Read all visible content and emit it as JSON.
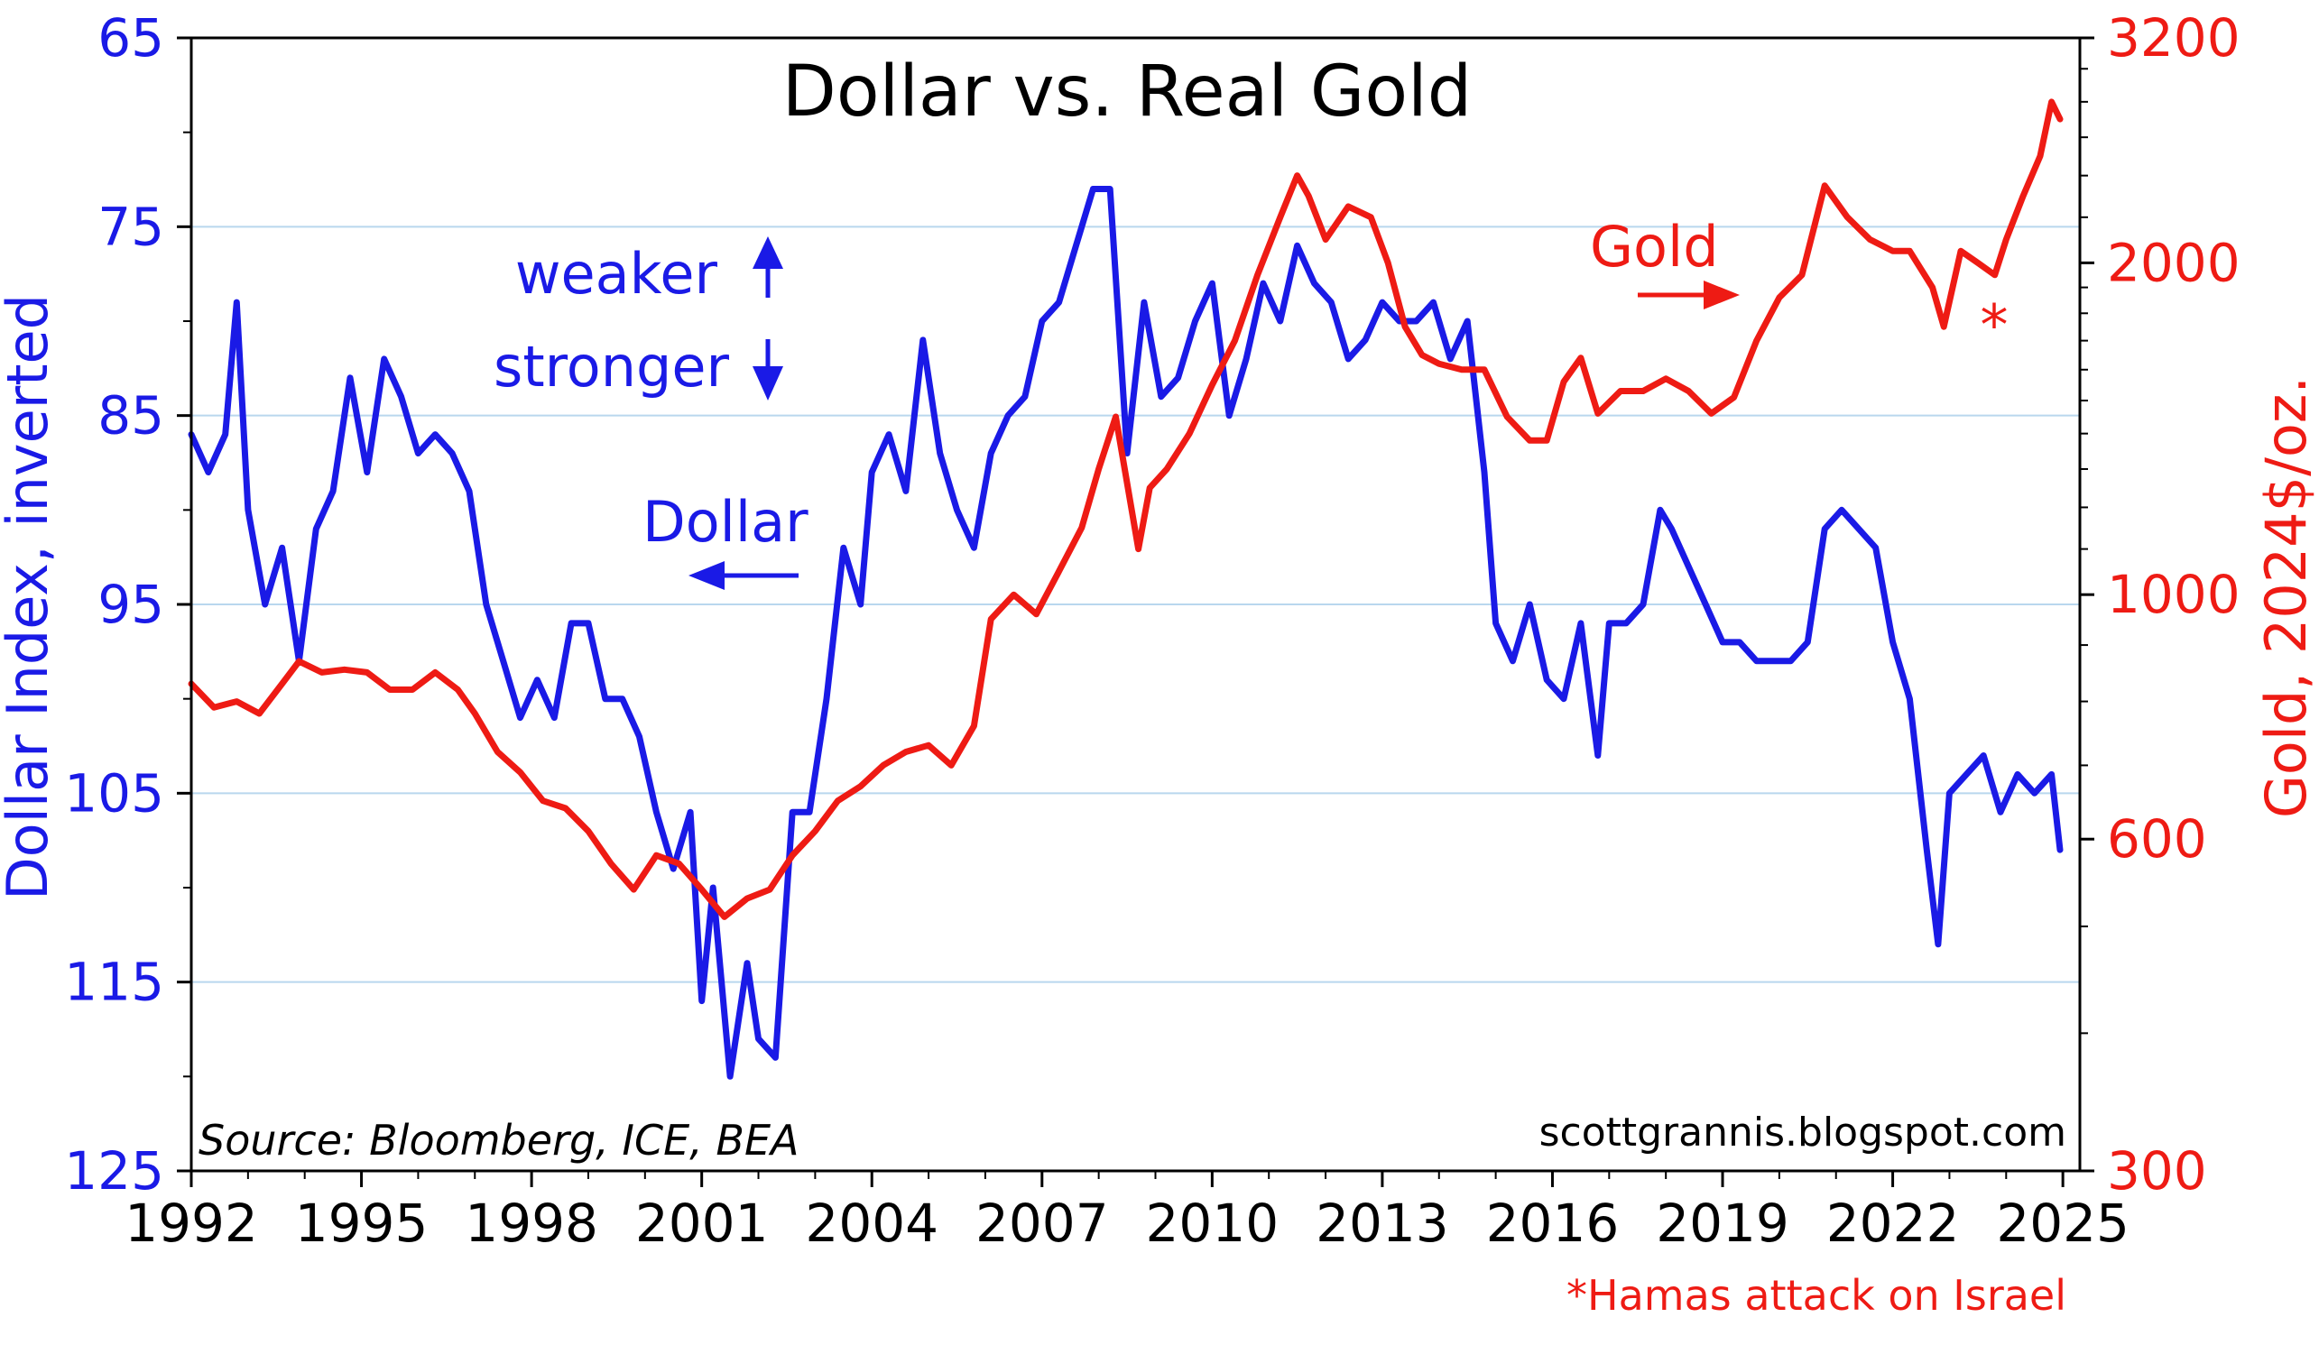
{
  "chart_data": {
    "type": "line",
    "title": "Dollar vs. Real Gold",
    "source": "Source: Bloomberg, ICE, BEA",
    "website": "scottgrannis.blogspot.com",
    "footnote": "*Hamas attack on Israel",
    "x_ticks": [
      "1992",
      "1995",
      "1998",
      "2001",
      "2004",
      "2007",
      "2010",
      "2013",
      "2016",
      "2019",
      "2022",
      "2025"
    ],
    "xlim": [
      1992,
      2025.3
    ],
    "left_axis": {
      "label": "Dollar Index, inverted",
      "ticks": [
        "65",
        "75",
        "85",
        "95",
        "105",
        "115",
        "125"
      ],
      "lim": [
        65,
        125
      ],
      "inverted": true
    },
    "right_axis": {
      "label": "Gold, 2024$/oz.",
      "ticks": [
        "3200",
        "2000",
        "1000",
        "600",
        "300"
      ],
      "lim": [
        300,
        3200
      ],
      "scale": "log"
    },
    "grid": true,
    "annotations": {
      "weaker": "weaker",
      "stronger": "stronger",
      "dollar": "Dollar",
      "gold": "Gold",
      "asterisk": "*"
    },
    "colors": {
      "dollar": "#1a1ae6",
      "gold": "#ee1b14"
    },
    "series": [
      {
        "name": "Dollar",
        "axis": "left",
        "x": [
          1992.0,
          1992.3,
          1992.6,
          1992.8,
          1993.0,
          1993.3,
          1993.6,
          1993.9,
          1994.2,
          1994.5,
          1994.8,
          1995.1,
          1995.4,
          1995.7,
          1996.0,
          1996.3,
          1996.6,
          1996.9,
          1997.2,
          1997.5,
          1997.8,
          1998.1,
          1998.4,
          1998.7,
          1999.0,
          1999.3,
          1999.6,
          1999.9,
          2000.2,
          2000.5,
          2000.8,
          2001.0,
          2001.2,
          2001.5,
          2001.8,
          2002.0,
          2002.3,
          2002.6,
          2002.9,
          2003.2,
          2003.5,
          2003.8,
          2004.0,
          2004.3,
          2004.6,
          2004.9,
          2005.2,
          2005.5,
          2005.8,
          2006.1,
          2006.4,
          2006.7,
          2007.0,
          2007.3,
          2007.6,
          2007.9,
          2008.2,
          2008.5,
          2008.8,
          2009.1,
          2009.4,
          2009.7,
          2010.0,
          2010.3,
          2010.6,
          2010.9,
          2011.2,
          2011.5,
          2011.8,
          2012.1,
          2012.4,
          2012.7,
          2013.0,
          2013.3,
          2013.6,
          2013.9,
          2014.2,
          2014.5,
          2014.8,
          2015.0,
          2015.3,
          2015.6,
          2015.9,
          2016.2,
          2016.5,
          2016.8,
          2017.0,
          2017.3,
          2017.6,
          2017.9,
          2018.1,
          2018.4,
          2018.7,
          2019.0,
          2019.3,
          2019.6,
          2019.9,
          2020.2,
          2020.5,
          2020.8,
          2021.1,
          2021.4,
          2021.7,
          2022.0,
          2022.3,
          2022.6,
          2022.8,
          2023.0,
          2023.3,
          2023.6,
          2023.9,
          2024.2,
          2024.5,
          2024.8,
          2024.95
        ],
        "values": [
          86,
          88,
          86,
          79,
          90,
          95,
          92,
          98,
          91,
          89,
          83,
          88,
          82,
          84,
          87,
          86,
          87,
          89,
          95,
          98,
          101,
          99,
          101,
          96,
          96,
          100,
          100,
          102,
          106,
          109,
          106,
          116,
          110,
          120,
          114,
          118,
          119,
          106,
          106,
          100,
          92,
          95,
          88,
          86,
          89,
          81,
          87,
          90,
          92,
          87,
          85,
          84,
          80,
          79,
          76,
          73,
          73,
          87,
          79,
          84,
          83,
          80,
          78,
          85,
          82,
          78,
          80,
          76,
          78,
          79,
          82,
          81,
          79,
          80,
          80,
          79,
          82,
          80,
          88,
          96,
          98,
          95,
          99,
          100,
          96,
          103,
          96,
          96,
          95,
          90,
          91,
          93,
          95,
          97,
          97,
          98,
          98,
          98,
          97,
          91,
          90,
          91,
          92,
          97,
          100,
          108,
          113,
          105,
          104,
          103,
          106,
          104,
          105,
          104,
          108
        ]
      },
      {
        "name": "Gold",
        "axis": "right",
        "x": [
          1992.0,
          1992.4,
          1992.8,
          1993.2,
          1993.6,
          1993.9,
          1994.3,
          1994.7,
          1995.1,
          1995.5,
          1995.9,
          1996.3,
          1996.7,
          1997.0,
          1997.4,
          1997.8,
          1998.2,
          1998.6,
          1999.0,
          1999.4,
          1999.8,
          2000.2,
          2000.6,
          2001.0,
          2001.4,
          2001.8,
          2002.2,
          2002.6,
          2003.0,
          2003.4,
          2003.8,
          2004.2,
          2004.6,
          2005.0,
          2005.4,
          2005.8,
          2006.1,
          2006.5,
          2006.9,
          2007.3,
          2007.7,
          2008.0,
          2008.3,
          2008.7,
          2008.9,
          2009.2,
          2009.6,
          2010.0,
          2010.4,
          2010.8,
          2011.2,
          2011.5,
          2011.7,
          2012.0,
          2012.4,
          2012.8,
          2013.1,
          2013.4,
          2013.7,
          2014.0,
          2014.4,
          2014.8,
          2015.2,
          2015.6,
          2015.9,
          2016.2,
          2016.5,
          2016.8,
          2017.2,
          2017.6,
          2018.0,
          2018.4,
          2018.8,
          2019.2,
          2019.6,
          2020.0,
          2020.4,
          2020.8,
          2021.2,
          2021.6,
          2022.0,
          2022.3,
          2022.7,
          2022.9,
          2023.2,
          2023.5,
          2023.8,
          2024.0,
          2024.3,
          2024.6,
          2024.8,
          2024.95
        ],
        "values": [
          830,
          790,
          800,
          780,
          830,
          870,
          850,
          855,
          850,
          820,
          820,
          850,
          820,
          780,
          720,
          690,
          650,
          640,
          610,
          570,
          540,
          580,
          570,
          540,
          510,
          530,
          540,
          580,
          610,
          650,
          670,
          700,
          720,
          730,
          700,
          760,
          950,
          1000,
          960,
          1050,
          1150,
          1300,
          1450,
          1100,
          1250,
          1300,
          1400,
          1550,
          1700,
          1950,
          2200,
          2400,
          2300,
          2100,
          2250,
          2200,
          2000,
          1750,
          1650,
          1620,
          1600,
          1600,
          1450,
          1380,
          1380,
          1560,
          1640,
          1460,
          1530,
          1530,
          1570,
          1530,
          1460,
          1510,
          1700,
          1860,
          1950,
          2350,
          2200,
          2100,
          2050,
          2050,
          1900,
          1750,
          2050,
          2000,
          1950,
          2100,
          2300,
          2500,
          2800,
          2700
        ]
      }
    ]
  }
}
